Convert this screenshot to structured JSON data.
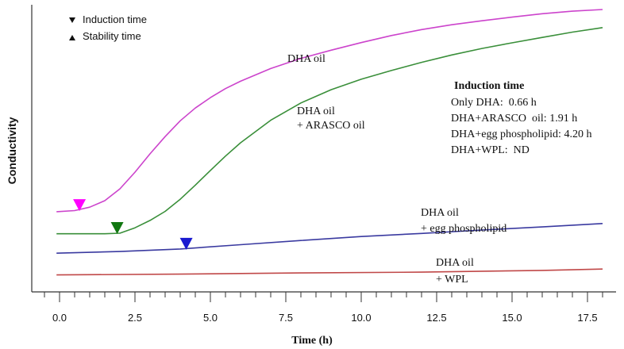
{
  "chart_data": {
    "type": "line",
    "title": "",
    "xlabel": "Time (h)",
    "ylabel": "Conductivity",
    "xlim": [
      -1,
      18.5
    ],
    "ylim": [
      0,
      100
    ],
    "xticks": [
      "0.0",
      "2.5",
      "5.0",
      "7.5",
      "10.0",
      "12.5",
      "15.0",
      "17.5"
    ],
    "xtick_values": [
      0,
      2.5,
      5,
      7.5,
      10,
      12.5,
      15,
      17.5
    ],
    "grid": false,
    "legend": {
      "position": "top-left",
      "items": [
        {
          "symbol": "down-triangle",
          "label": "Induction time"
        },
        {
          "symbol": "up-triangle",
          "label": "Stability time"
        }
      ]
    },
    "series": [
      {
        "label_lines": [
          "DHA oil"
        ],
        "color": "#cc44cc",
        "x": [
          -0.1,
          0.5,
          1.0,
          1.5,
          2.0,
          2.5,
          3.0,
          3.5,
          4.0,
          4.5,
          5.0,
          5.5,
          6.0,
          7.0,
          8.0,
          9.0,
          10.0,
          11.0,
          12.0,
          13.0,
          14.0,
          15.0,
          16.0,
          17.0,
          18.0
        ],
        "y": [
          28.4,
          28.8,
          30.0,
          32.3,
          36.5,
          42.4,
          48.9,
          55.0,
          60.6,
          65.1,
          68.8,
          72.0,
          74.6,
          79.1,
          82.7,
          85.6,
          88.3,
          90.8,
          92.9,
          94.6,
          96.0,
          97.3,
          98.5,
          99.4,
          100.0
        ],
        "marker": {
          "symbol": "down-triangle",
          "x": 0.66,
          "y": 28.9,
          "color": "#ff00ff"
        }
      },
      {
        "label_lines": [
          "DHA oil",
          "+ ARASCO oil"
        ],
        "color": "#3a8f3a",
        "x": [
          -0.1,
          0.5,
          1.0,
          1.5,
          2.0,
          2.5,
          3.0,
          3.5,
          4.0,
          4.5,
          5.0,
          5.5,
          6.0,
          7.0,
          8.0,
          9.0,
          10.0,
          11.0,
          12.0,
          13.0,
          14.0,
          15.0,
          16.0,
          17.0,
          18.0
        ],
        "y": [
          20.6,
          20.6,
          20.6,
          20.6,
          20.8,
          22.7,
          25.3,
          28.5,
          32.8,
          37.8,
          43.0,
          48.1,
          52.8,
          60.8,
          66.9,
          71.6,
          75.3,
          78.4,
          81.3,
          83.9,
          86.2,
          88.2,
          90.1,
          92.0,
          93.6
        ],
        "marker": {
          "symbol": "down-triangle",
          "x": 1.91,
          "y": 20.8,
          "color": "#117711"
        }
      },
      {
        "label_lines": [
          "DHA oil",
          "+ egg phospholipid"
        ],
        "color": "#3a3aa0",
        "x": [
          -0.1,
          2.0,
          4.0,
          6.0,
          8.0,
          10.0,
          12.0,
          14.0,
          16.0,
          18.0
        ],
        "y": [
          13.7,
          14.3,
          15.2,
          16.7,
          18.2,
          19.6,
          20.7,
          21.9,
          23.0,
          24.2
        ],
        "marker": {
          "symbol": "down-triangle",
          "x": 4.2,
          "y": 15.2,
          "color": "#1a1ad0"
        }
      },
      {
        "label_lines": [
          "DHA oil",
          "+ WPL"
        ],
        "color": "#c04848",
        "x": [
          -0.1,
          4.0,
          8.0,
          12.0,
          16.0,
          18.0
        ],
        "y": [
          6.0,
          6.3,
          6.7,
          7.0,
          7.6,
          8.1
        ],
        "marker": null
      }
    ],
    "annotation": {
      "title": "Induction time",
      "lines": [
        "Only DHA:  0.66 h",
        "DHA+ARASCO  oil: 1.91 h",
        "DHA+egg phospholipid: 4.20 h",
        "DHA+WPL:  ND"
      ]
    }
  }
}
